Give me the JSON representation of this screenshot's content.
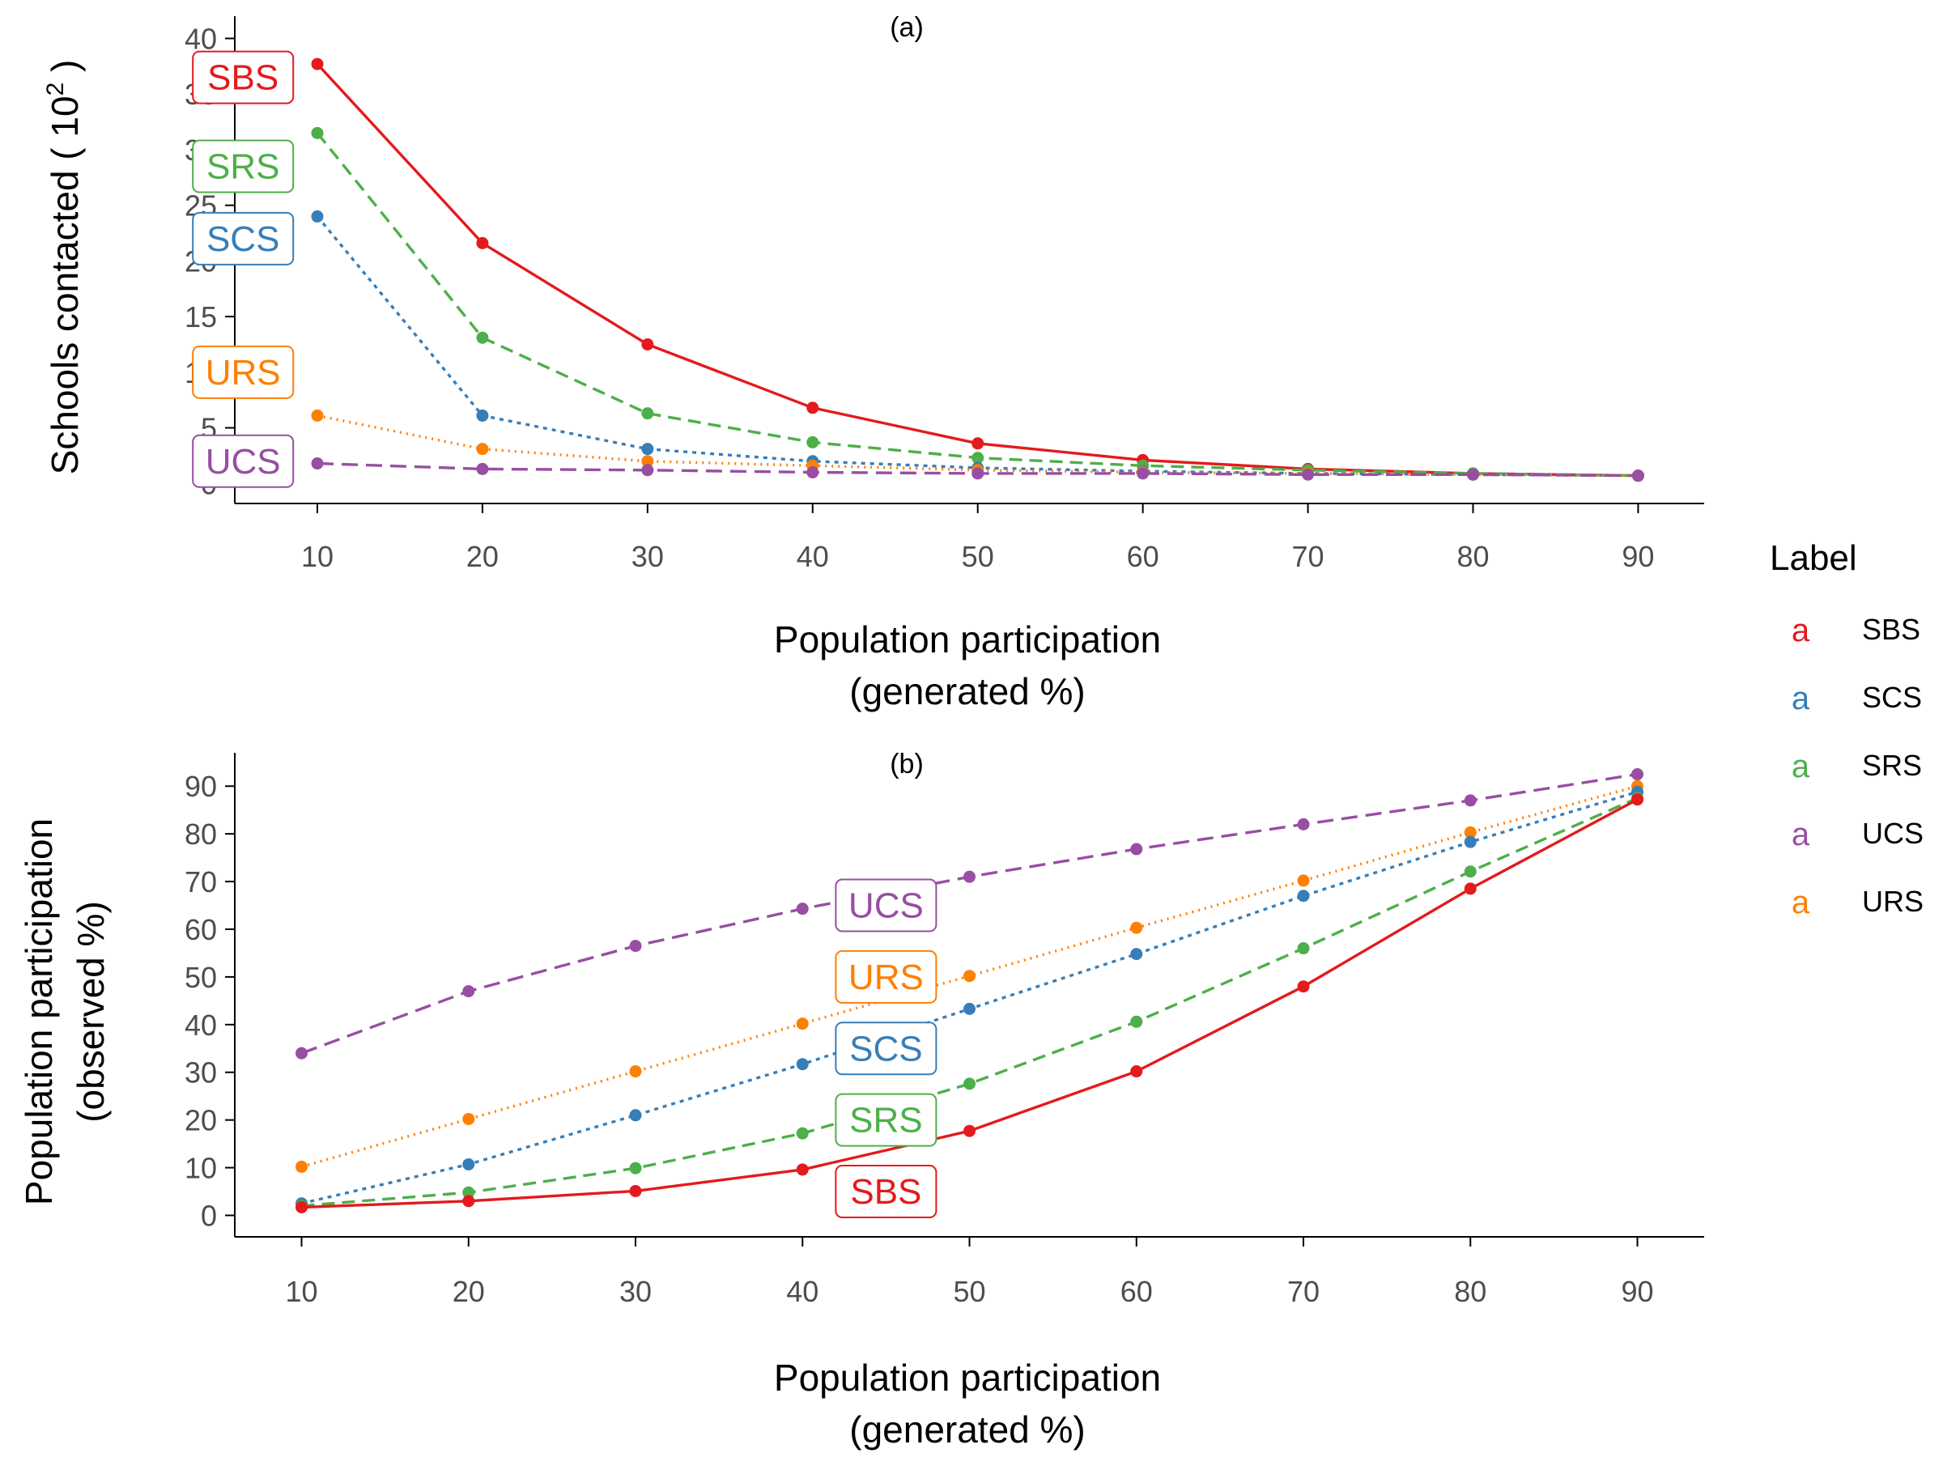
{
  "colors": {
    "SBS": "#e41a1c",
    "SCS": "#377eb8",
    "SRS": "#4daf4a",
    "UCS": "#984ea3",
    "URS": "#ff7f00"
  },
  "line_styles": {
    "SBS": "solid",
    "SRS": "dashed",
    "SCS": "dotted",
    "URS": "dotted-fine",
    "UCS": "long-dash"
  },
  "legend": {
    "title": "Label",
    "key_glyph": "a",
    "placement": "right",
    "entries": [
      "SBS",
      "SCS",
      "SRS",
      "UCS",
      "URS"
    ]
  },
  "chart_data": [
    {
      "type": "line",
      "panel": "(a)",
      "title": "(a)",
      "xlabel_line1": "Population participation",
      "xlabel_line2": "(generated %)",
      "ylabel": "Schools contacted ( 10",
      "ylabel_sup": "2",
      "ylabel_end": " )",
      "x": [
        10,
        20,
        30,
        40,
        50,
        60,
        70,
        80,
        90
      ],
      "xlim": [
        5,
        94
      ],
      "ylim": [
        -1.8,
        42
      ],
      "xticks": [
        10,
        20,
        30,
        40,
        50,
        60,
        70,
        80,
        90
      ],
      "yticks": [
        0,
        5,
        10,
        15,
        20,
        25,
        30,
        35,
        40
      ],
      "series": [
        {
          "name": "SBS",
          "values": [
            37.7,
            21.6,
            12.5,
            6.8,
            3.6,
            2.1,
            1.3,
            0.9,
            0.7
          ]
        },
        {
          "name": "SRS",
          "values": [
            31.5,
            13.1,
            6.3,
            3.7,
            2.3,
            1.6,
            1.2,
            0.9,
            0.7
          ]
        },
        {
          "name": "SCS",
          "values": [
            24.0,
            6.1,
            3.1,
            2.0,
            1.4,
            1.1,
            0.9,
            0.8,
            0.7
          ]
        },
        {
          "name": "URS",
          "values": [
            6.1,
            3.1,
            2.0,
            1.6,
            1.2,
            1.0,
            0.9,
            0.8,
            0.7
          ]
        },
        {
          "name": "UCS",
          "values": [
            1.8,
            1.3,
            1.2,
            1.0,
            0.9,
            0.9,
            0.8,
            0.8,
            0.7
          ]
        }
      ],
      "tags": [
        {
          "name": "SBS",
          "label": "SBS",
          "x": 5.5,
          "y": 36.5
        },
        {
          "name": "SRS",
          "label": "SRS",
          "x": 5.5,
          "y": 28.5
        },
        {
          "name": "SCS",
          "label": "SCS",
          "x": 5.5,
          "y": 22.0
        },
        {
          "name": "URS",
          "label": "URS",
          "x": 5.5,
          "y": 10.0
        },
        {
          "name": "UCS",
          "label": "UCS",
          "x": 5.5,
          "y": 2.0
        }
      ]
    },
    {
      "type": "line",
      "panel": "(b)",
      "title": "(b)",
      "xlabel_line1": "Population participation",
      "xlabel_line2": "(generated %)",
      "ylabel_line1": "Population participation",
      "ylabel_line2": "(observed %)",
      "x": [
        10,
        20,
        30,
        40,
        50,
        60,
        70,
        80,
        90
      ],
      "xlim": [
        6,
        94
      ],
      "ylim": [
        -4.5,
        97
      ],
      "xticks": [
        10,
        20,
        30,
        40,
        50,
        60,
        70,
        80,
        90
      ],
      "yticks": [
        0,
        10,
        20,
        30,
        40,
        50,
        60,
        70,
        80,
        90
      ],
      "series": [
        {
          "name": "UCS",
          "values": [
            34.0,
            47.0,
            56.5,
            64.3,
            71.0,
            76.8,
            82.0,
            87.0,
            92.5
          ]
        },
        {
          "name": "URS",
          "values": [
            10.2,
            20.2,
            30.2,
            40.2,
            50.2,
            60.3,
            70.2,
            80.3,
            90.0
          ]
        },
        {
          "name": "SCS",
          "values": [
            2.5,
            10.7,
            21.0,
            31.7,
            43.3,
            54.8,
            67.0,
            78.3,
            88.8
          ]
        },
        {
          "name": "SRS",
          "values": [
            2.0,
            4.8,
            9.9,
            17.2,
            27.6,
            40.6,
            56.0,
            72.1,
            87.5
          ]
        },
        {
          "name": "SBS",
          "values": [
            1.7,
            3.0,
            5.1,
            9.6,
            17.7,
            30.2,
            48.0,
            68.5,
            87.2
          ]
        }
      ],
      "tags": [
        {
          "name": "UCS",
          "label": "UCS",
          "x": 45,
          "y": 65.0
        },
        {
          "name": "URS",
          "label": "URS",
          "x": 45,
          "y": 50.0
        },
        {
          "name": "SCS",
          "label": "SCS",
          "x": 45,
          "y": 35.0
        },
        {
          "name": "SRS",
          "label": "SRS",
          "x": 45,
          "y": 20.0
        },
        {
          "name": "SBS",
          "label": "SBS",
          "x": 45,
          "y": 5.0
        }
      ]
    }
  ]
}
